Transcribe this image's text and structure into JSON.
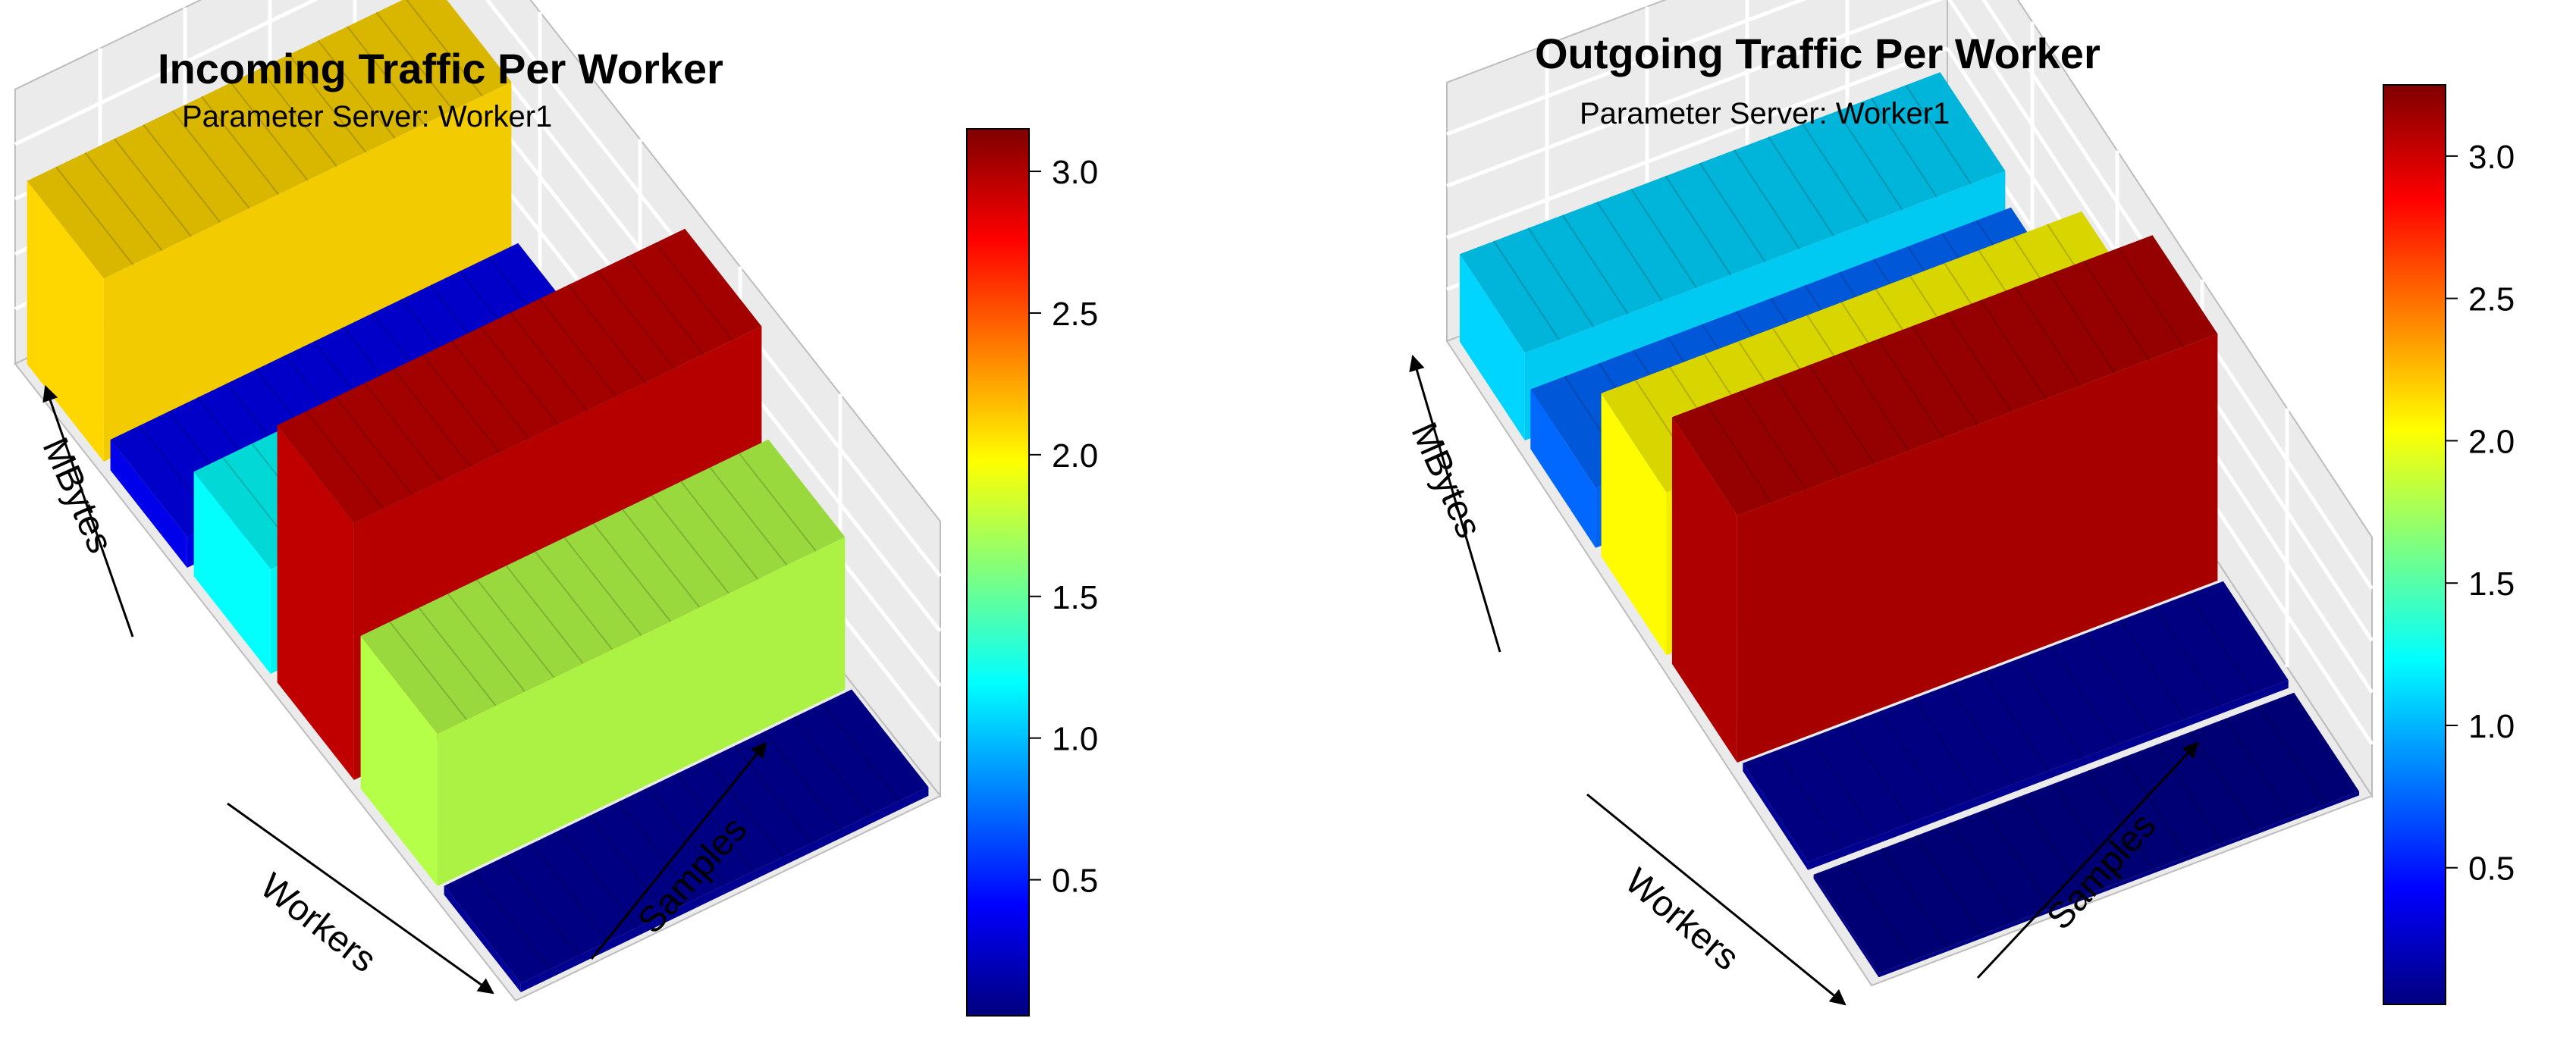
{
  "chart_data": [
    {
      "type": "bar3d",
      "title": "Incoming Traffic Per Worker",
      "subtitle": "Parameter Server: Worker1",
      "xlabel": "Workers",
      "ylabel": "Samples",
      "zlabel": "MBytes",
      "colorbar": {
        "ticks": [
          0.5,
          1.0,
          1.5,
          2.0,
          2.5,
          3.0
        ],
        "tick_labels": [
          "0.5",
          "1.0",
          "1.5",
          "2.0",
          "2.5",
          "3.0"
        ],
        "range": [
          0.02,
          3.15
        ]
      },
      "worker_values": [
        2.1,
        0.35,
        1.2,
        2.95,
        1.75,
        0.1
      ],
      "colorscale": [
        "#00007f",
        "#0000ff",
        "#007fff",
        "#00ffff",
        "#7fff7f",
        "#ffff00",
        "#ff7f00",
        "#ff0000",
        "#7f0000"
      ]
    },
    {
      "type": "bar3d",
      "title": "Outgoing Traffic Per Worker",
      "subtitle": "Parameter Server: Worker1",
      "xlabel": "Workers",
      "ylabel": "Samples",
      "zlabel": "MBytes",
      "colorbar": {
        "ticks": [
          0.5,
          1.0,
          1.5,
          2.0,
          2.5,
          3.0
        ],
        "tick_labels": [
          "0.5",
          "1.0",
          "1.5",
          "2.0",
          "2.5",
          "3.0"
        ],
        "range": [
          0.02,
          3.25
        ]
      },
      "worker_values": [
        1.1,
        0.75,
        2.05,
        3.1,
        0.1,
        0.05
      ],
      "colorscale": [
        "#00007f",
        "#0000ff",
        "#007fff",
        "#00ffff",
        "#7fff7f",
        "#ffff00",
        "#ff7f00",
        "#ff0000",
        "#7f0000"
      ]
    }
  ]
}
